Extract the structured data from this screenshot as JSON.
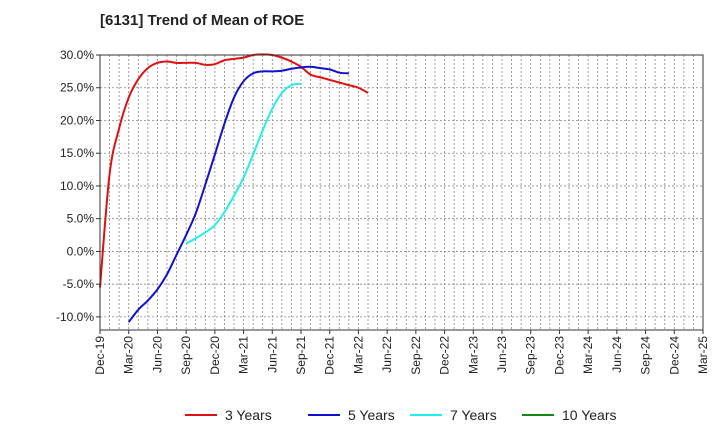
{
  "chart_data": {
    "type": "line",
    "title": "[6131]  Trend of Mean of ROE",
    "xlabel": "",
    "ylabel": "",
    "ylim": [
      -12,
      30
    ],
    "y_ticks": [
      30,
      25,
      20,
      15,
      10,
      5,
      0,
      -5,
      -10
    ],
    "y_tick_labels": [
      "30.0%",
      "25.0%",
      "20.0%",
      "15.0%",
      "10.0%",
      "5.0%",
      "0.0%",
      "-5.0%",
      "-10.0%"
    ],
    "x_tick_labels": [
      "Dec-19",
      "Mar-20",
      "Jun-20",
      "Sep-20",
      "Dec-20",
      "Mar-21",
      "Jun-21",
      "Sep-21",
      "Dec-21",
      "Mar-22",
      "Jun-22",
      "Sep-22",
      "Dec-22",
      "Mar-23",
      "Jun-23",
      "Sep-23",
      "Dec-23",
      "Mar-24",
      "Jun-24",
      "Sep-24",
      "Dec-24",
      "Mar-25"
    ],
    "grid": true,
    "legend_position": "bottom",
    "series": [
      {
        "name": "3 Years",
        "color": "#dd1111",
        "points": [
          [
            0,
            -5.5
          ],
          [
            1,
            11.8
          ],
          [
            2,
            18.8
          ],
          [
            3,
            23.5
          ],
          [
            4,
            26.3
          ],
          [
            5,
            28.0
          ],
          [
            6,
            28.8
          ],
          [
            7,
            29.0
          ],
          [
            8,
            28.8
          ],
          [
            9,
            28.8
          ],
          [
            10,
            28.8
          ],
          [
            11,
            28.5
          ],
          [
            12,
            28.6
          ],
          [
            13,
            29.2
          ],
          [
            14,
            29.4
          ],
          [
            15,
            29.6
          ],
          [
            16,
            30.0
          ],
          [
            17,
            30.1
          ],
          [
            18,
            30.0
          ],
          [
            19,
            29.6
          ],
          [
            20,
            29.0
          ],
          [
            21,
            28.2
          ],
          [
            22,
            27.0
          ],
          [
            23,
            26.6
          ],
          [
            24,
            26.2
          ],
          [
            25,
            25.8
          ],
          [
            26,
            25.4
          ],
          [
            27,
            25.0
          ],
          [
            28,
            24.2
          ]
        ]
      },
      {
        "name": "5 Years",
        "color": "#1111cc",
        "points": [
          [
            3,
            -10.8
          ],
          [
            4,
            -8.9
          ],
          [
            5,
            -7.5
          ],
          [
            6,
            -5.8
          ],
          [
            7,
            -3.5
          ],
          [
            8,
            -0.5
          ],
          [
            9,
            2.5
          ],
          [
            10,
            5.8
          ],
          [
            11,
            10.2
          ],
          [
            12,
            14.8
          ],
          [
            13,
            19.5
          ],
          [
            14,
            23.5
          ],
          [
            15,
            26.0
          ],
          [
            16,
            27.2
          ],
          [
            17,
            27.5
          ],
          [
            18,
            27.5
          ],
          [
            19,
            27.6
          ],
          [
            20,
            27.9
          ],
          [
            21,
            28.1
          ],
          [
            22,
            28.2
          ],
          [
            23,
            28.0
          ],
          [
            24,
            27.8
          ],
          [
            25,
            27.3
          ],
          [
            26,
            27.2
          ]
        ]
      },
      {
        "name": "7 Years",
        "color": "#22eeee",
        "points": [
          [
            9,
            1.2
          ],
          [
            10,
            2.0
          ],
          [
            11,
            2.9
          ],
          [
            12,
            4.0
          ],
          [
            13,
            6.0
          ],
          [
            14,
            8.5
          ],
          [
            15,
            11.3
          ],
          [
            16,
            14.8
          ],
          [
            17,
            18.5
          ],
          [
            18,
            21.8
          ],
          [
            19,
            24.2
          ],
          [
            20,
            25.4
          ],
          [
            21,
            25.6
          ]
        ]
      },
      {
        "name": "10 Years",
        "color": "#118811",
        "points": []
      }
    ]
  }
}
